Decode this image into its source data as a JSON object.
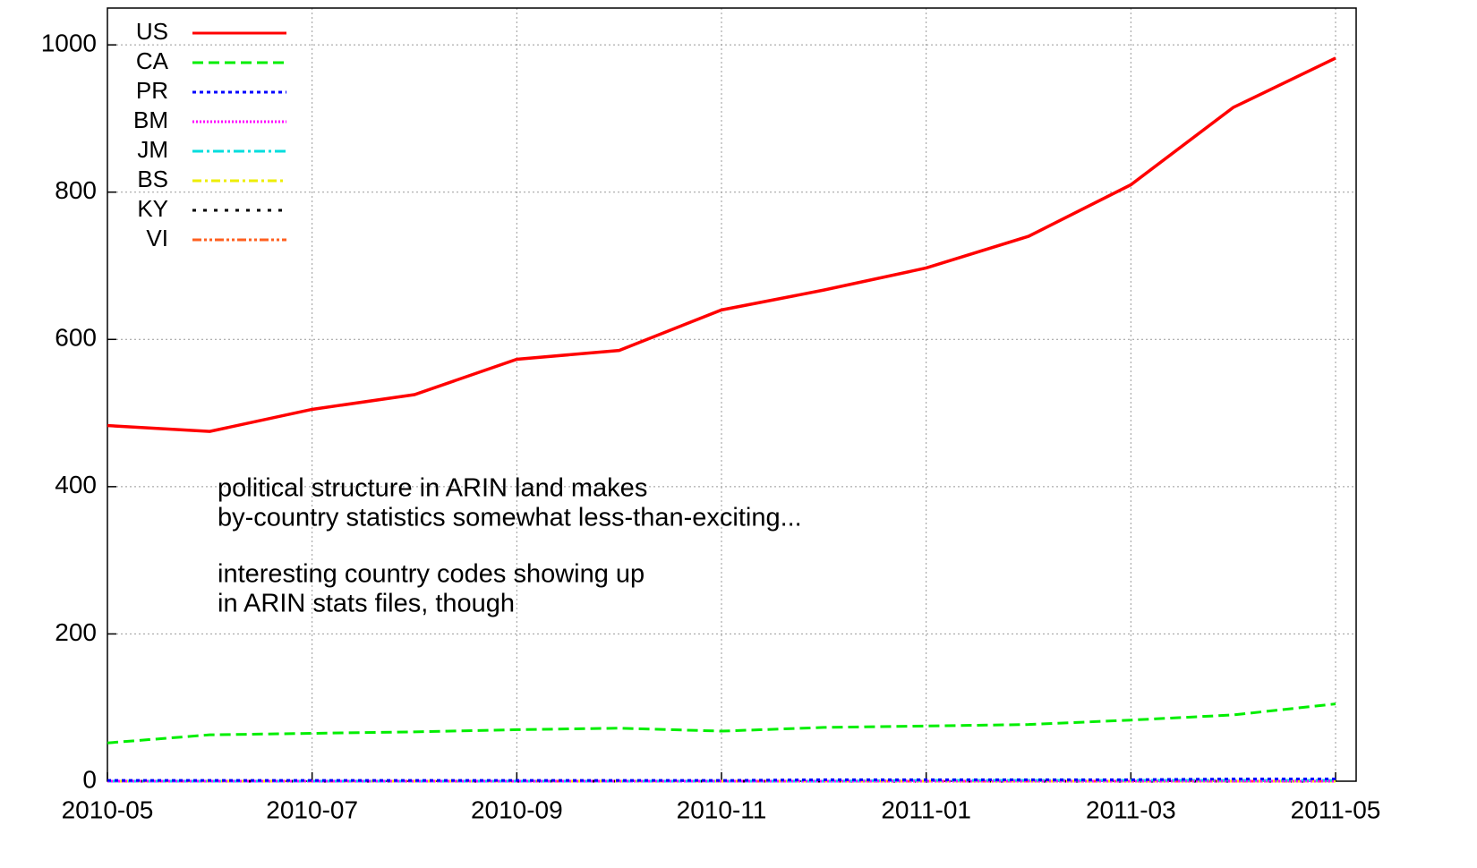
{
  "chart_data": {
    "type": "line",
    "x": [
      "2010-05",
      "2010-06",
      "2010-07",
      "2010-08",
      "2010-09",
      "2010-10",
      "2010-11",
      "2010-12",
      "2011-01",
      "2011-02",
      "2011-03",
      "2011-04",
      "2011-05"
    ],
    "series": [
      {
        "name": "US",
        "color": "#ff0000",
        "dash": "none",
        "values": [
          483,
          475,
          505,
          525,
          573,
          585,
          640,
          667,
          697,
          740,
          810,
          915,
          982
        ]
      },
      {
        "name": "CA",
        "color": "#00ee00",
        "dash": "12,6",
        "values": [
          52,
          63,
          65,
          67,
          70,
          72,
          68,
          73,
          75,
          77,
          83,
          90,
          105
        ]
      },
      {
        "name": "PR",
        "color": "#0000ff",
        "dash": "4,4",
        "values": [
          1,
          1,
          1,
          1,
          1,
          1,
          1,
          2,
          2,
          2,
          2,
          3,
          3
        ]
      },
      {
        "name": "BM",
        "color": "#ff00ff",
        "dash": "2,2",
        "values": [
          0,
          0,
          0,
          0,
          0,
          0,
          0,
          0,
          0,
          0,
          0,
          0,
          0
        ]
      },
      {
        "name": "JM",
        "color": "#00dddd",
        "dash": "12,4,3,4",
        "values": [
          0,
          0,
          0,
          0,
          0,
          0,
          0,
          0,
          1,
          1,
          1,
          1,
          1
        ]
      },
      {
        "name": "BS",
        "color": "#eeee00",
        "dash": "10,4,3,4",
        "values": [
          0,
          0,
          0,
          0,
          0,
          0,
          0,
          0,
          0,
          0,
          0,
          0,
          0
        ]
      },
      {
        "name": "KY",
        "color": "#000000",
        "dash": "4,8",
        "values": [
          0,
          0,
          0,
          0,
          0,
          0,
          0,
          0,
          0,
          0,
          0,
          0,
          0
        ]
      },
      {
        "name": "VI",
        "color": "#ff6020",
        "dash": "10,3,3,3,3,3",
        "values": [
          0,
          0,
          0,
          0,
          0,
          0,
          0,
          0,
          0,
          0,
          0,
          0,
          0
        ]
      }
    ],
    "xlim": [
      "2010-05",
      "2011-05"
    ],
    "xticks": [
      "2010-05",
      "2010-07",
      "2010-09",
      "2010-11",
      "2011-01",
      "2011-03",
      "2011-05"
    ],
    "ylim": [
      0,
      1050
    ],
    "yticks": [
      0,
      200,
      400,
      600,
      800,
      1000
    ],
    "grid": true,
    "legend": "top-left",
    "annotations": [
      "political structure in ARIN land makes",
      "by-country statistics somewhat less-than-exciting...",
      "interesting country codes showing up",
      "in ARIN stats files, though"
    ]
  }
}
